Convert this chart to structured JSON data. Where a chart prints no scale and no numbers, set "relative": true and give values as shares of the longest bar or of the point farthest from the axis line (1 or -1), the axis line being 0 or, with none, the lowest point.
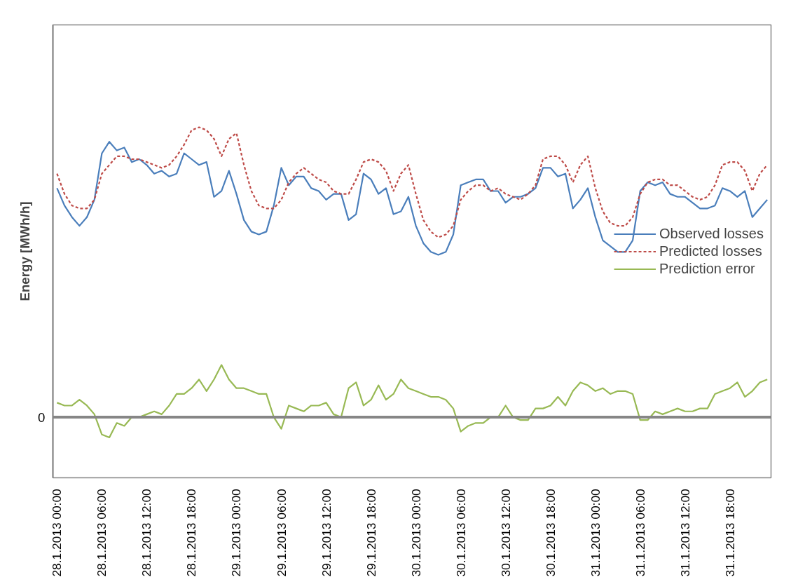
{
  "chart_data": {
    "type": "line",
    "relative": true,
    "ylabel": "Energy [MWh/h]",
    "legend": "right",
    "grid": false,
    "marker": "none",
    "x": [
      "2013-01-28T00:00",
      "2013-01-28T01:00",
      "2013-01-28T02:00",
      "2013-01-28T03:00",
      "2013-01-28T04:00",
      "2013-01-28T05:00",
      "2013-01-28T06:00",
      "2013-01-28T07:00",
      "2013-01-28T08:00",
      "2013-01-28T09:00",
      "2013-01-28T10:00",
      "2013-01-28T11:00",
      "2013-01-28T12:00",
      "2013-01-28T13:00",
      "2013-01-28T14:00",
      "2013-01-28T15:00",
      "2013-01-28T16:00",
      "2013-01-28T17:00",
      "2013-01-28T18:00",
      "2013-01-28T19:00",
      "2013-01-28T20:00",
      "2013-01-28T21:00",
      "2013-01-28T22:00",
      "2013-01-28T23:00",
      "2013-01-29T00:00",
      "2013-01-29T01:00",
      "2013-01-29T02:00",
      "2013-01-29T03:00",
      "2013-01-29T04:00",
      "2013-01-29T05:00",
      "2013-01-29T06:00",
      "2013-01-29T07:00",
      "2013-01-29T08:00",
      "2013-01-29T09:00",
      "2013-01-29T10:00",
      "2013-01-29T11:00",
      "2013-01-29T12:00",
      "2013-01-29T13:00",
      "2013-01-29T14:00",
      "2013-01-29T15:00",
      "2013-01-29T16:00",
      "2013-01-29T17:00",
      "2013-01-29T18:00",
      "2013-01-29T19:00",
      "2013-01-29T20:00",
      "2013-01-29T21:00",
      "2013-01-29T22:00",
      "2013-01-29T23:00",
      "2013-01-30T00:00",
      "2013-01-30T01:00",
      "2013-01-30T02:00",
      "2013-01-30T03:00",
      "2013-01-30T04:00",
      "2013-01-30T05:00",
      "2013-01-30T06:00",
      "2013-01-30T07:00",
      "2013-01-30T08:00",
      "2013-01-30T09:00",
      "2013-01-30T10:00",
      "2013-01-30T11:00",
      "2013-01-30T12:00",
      "2013-01-30T13:00",
      "2013-01-30T14:00",
      "2013-01-30T15:00",
      "2013-01-30T16:00",
      "2013-01-30T17:00",
      "2013-01-30T18:00",
      "2013-01-30T19:00",
      "2013-01-30T20:00",
      "2013-01-30T21:00",
      "2013-01-30T22:00",
      "2013-01-30T23:00",
      "2013-01-31T00:00",
      "2013-01-31T01:00",
      "2013-01-31T02:00",
      "2013-01-31T03:00",
      "2013-01-31T04:00",
      "2013-01-31T05:00",
      "2013-01-31T06:00",
      "2013-01-31T07:00",
      "2013-01-31T08:00",
      "2013-01-31T09:00",
      "2013-01-31T10:00",
      "2013-01-31T11:00",
      "2013-01-31T12:00",
      "2013-01-31T13:00",
      "2013-01-31T14:00",
      "2013-01-31T15:00",
      "2013-01-31T16:00",
      "2013-01-31T17:00",
      "2013-01-31T18:00",
      "2013-01-31T19:00",
      "2013-01-31T20:00",
      "2013-01-31T21:00",
      "2013-01-31T22:00",
      "2013-01-31T23:00"
    ],
    "xlim": [
      "2013-01-27T23:27",
      "2013-01-31T23:30"
    ],
    "xticks": [
      {
        "value": "2013-01-28T00:00",
        "label": "28.1.2013  00:00"
      },
      {
        "value": "2013-01-28T06:00",
        "label": "28.1.2013  06:00"
      },
      {
        "value": "2013-01-28T12:00",
        "label": "28.1.2013  12:00"
      },
      {
        "value": "2013-01-28T18:00",
        "label": "28.1.2013  18:00"
      },
      {
        "value": "2013-01-29T00:00",
        "label": "29.1.2013  00:00"
      },
      {
        "value": "2013-01-29T06:00",
        "label": "29.1.2013  06:00"
      },
      {
        "value": "2013-01-29T12:00",
        "label": "29.1.2013  12:00"
      },
      {
        "value": "2013-01-29T18:00",
        "label": "29.1.2013  18:00"
      },
      {
        "value": "2013-01-30T00:00",
        "label": "30.1.2013  00:00"
      },
      {
        "value": "2013-01-30T06:00",
        "label": "30.1.2013  06:00"
      },
      {
        "value": "2013-01-30T12:00",
        "label": "30.1.2013  12:00"
      },
      {
        "value": "2013-01-30T18:00",
        "label": "30.1.2013  18:00"
      },
      {
        "value": "2013-01-31T00:00",
        "label": "31.1.2013  00:00"
      },
      {
        "value": "2013-01-31T06:00",
        "label": "31.1.2013  06:00"
      },
      {
        "value": "2013-01-31T12:00",
        "label": "31.1.2013  12:00"
      },
      {
        "value": "2013-01-31T18:00",
        "label": "31.1.2013  18:00"
      }
    ],
    "annotations": [
      "0"
    ],
    "series": [
      {
        "name": "Observed losses",
        "color": "#4a7ebb",
        "line_style": "solid",
        "values": [
          0.79,
          0.73,
          0.69,
          0.66,
          0.69,
          0.75,
          0.91,
          0.95,
          0.92,
          0.93,
          0.88,
          0.89,
          0.87,
          0.84,
          0.85,
          0.83,
          0.84,
          0.91,
          0.89,
          0.87,
          0.88,
          0.76,
          0.78,
          0.85,
          0.77,
          0.68,
          0.64,
          0.63,
          0.64,
          0.73,
          0.86,
          0.8,
          0.83,
          0.83,
          0.79,
          0.78,
          0.75,
          0.77,
          0.77,
          0.68,
          0.7,
          0.84,
          0.82,
          0.77,
          0.79,
          0.7,
          0.71,
          0.76,
          0.66,
          0.6,
          0.57,
          0.56,
          0.57,
          0.63,
          0.8,
          0.81,
          0.82,
          0.82,
          0.78,
          0.78,
          0.74,
          0.76,
          0.76,
          0.77,
          0.79,
          0.86,
          0.86,
          0.83,
          0.84,
          0.72,
          0.75,
          0.79,
          0.69,
          0.61,
          0.59,
          0.57,
          0.57,
          0.61,
          0.78,
          0.81,
          0.8,
          0.81,
          0.77,
          0.76,
          0.76,
          0.74,
          0.72,
          0.72,
          0.73,
          0.79,
          0.78,
          0.76,
          0.78,
          0.69,
          0.72,
          0.75
        ]
      },
      {
        "name": "Predicted losses",
        "color": "#be4b48",
        "line_style": "dashed",
        "values": [
          0.84,
          0.77,
          0.73,
          0.72,
          0.72,
          0.75,
          0.84,
          0.87,
          0.9,
          0.9,
          0.89,
          0.89,
          0.88,
          0.87,
          0.86,
          0.87,
          0.9,
          0.94,
          0.99,
          1,
          0.99,
          0.96,
          0.9,
          0.96,
          0.98,
          0.87,
          0.78,
          0.73,
          0.72,
          0.72,
          0.75,
          0.81,
          0.84,
          0.86,
          0.84,
          0.82,
          0.81,
          0.78,
          0.77,
          0.77,
          0.82,
          0.88,
          0.89,
          0.88,
          0.85,
          0.78,
          0.84,
          0.87,
          0.77,
          0.68,
          0.64,
          0.62,
          0.63,
          0.66,
          0.75,
          0.78,
          0.8,
          0.8,
          0.78,
          0.79,
          0.77,
          0.76,
          0.75,
          0.77,
          0.8,
          0.89,
          0.9,
          0.9,
          0.87,
          0.81,
          0.87,
          0.9,
          0.79,
          0.71,
          0.67,
          0.66,
          0.66,
          0.69,
          0.77,
          0.81,
          0.82,
          0.82,
          0.8,
          0.8,
          0.78,
          0.76,
          0.75,
          0.76,
          0.8,
          0.87,
          0.88,
          0.88,
          0.85,
          0.78,
          0.84,
          0.87
        ]
      },
      {
        "name": "Prediction error",
        "color": "#98b954",
        "line_style": "solid",
        "values": [
          0.05,
          0.04,
          0.04,
          0.06,
          0.04,
          0.01,
          -0.06,
          -0.07,
          -0.02,
          -0.03,
          0,
          0,
          0.01,
          0.02,
          0.01,
          0.04,
          0.08,
          0.08,
          0.1,
          0.13,
          0.09,
          0.13,
          0.18,
          0.13,
          0.1,
          0.1,
          0.09,
          0.08,
          0.08,
          0,
          -0.04,
          0.04,
          0.03,
          0.02,
          0.04,
          0.04,
          0.05,
          0.01,
          0,
          0.1,
          0.12,
          0.04,
          0.06,
          0.11,
          0.06,
          0.08,
          0.13,
          0.1,
          0.09,
          0.08,
          0.07,
          0.07,
          0.06,
          0.03,
          -0.05,
          -0.03,
          -0.02,
          -0.02,
          0,
          0,
          0.04,
          0,
          -0.01,
          -0.01,
          0.03,
          0.03,
          0.04,
          0.07,
          0.04,
          0.09,
          0.12,
          0.11,
          0.09,
          0.1,
          0.08,
          0.09,
          0.09,
          0.08,
          -0.01,
          -0.01,
          0.02,
          0.01,
          0.02,
          0.03,
          0.02,
          0.02,
          0.03,
          0.03,
          0.08,
          0.09,
          0.1,
          0.12,
          0.07,
          0.09,
          0.12,
          0.13
        ]
      }
    ]
  }
}
